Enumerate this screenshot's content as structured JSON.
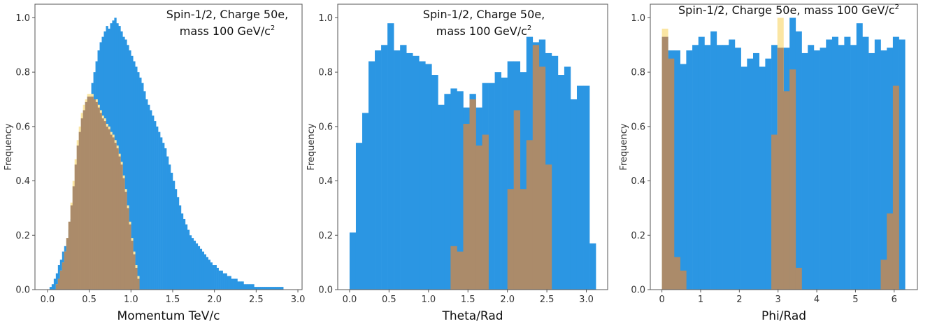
{
  "colors": {
    "blue": "#2b96e3",
    "brown": "#ab8b6a",
    "yellow": "#fbe6a3",
    "axis": "#555555"
  },
  "chart_data": [
    {
      "type": "bar",
      "xlabel": "Momentum  TeV/c",
      "ylabel": "Frequency",
      "xlim": [
        -0.15,
        3.05
      ],
      "ylim": [
        0,
        1.05
      ],
      "xticks": [
        "0.0",
        "0.5",
        "1.0",
        "1.5",
        "2.0",
        "2.5",
        "3.0"
      ],
      "yticks": [
        "0.0",
        "0.2",
        "0.4",
        "0.6",
        "0.8",
        "1.0"
      ],
      "annotation": [
        "Spin-1/2, Charge 50e,",
        "mass 100 GeV/c",
        "2"
      ],
      "series": [
        {
          "color": "blue",
          "x_start": 0.0,
          "bin_width": 0.025,
          "values": [
            0.0,
            0.01,
            0.02,
            0.04,
            0.06,
            0.09,
            0.11,
            0.14,
            0.16,
            0.18,
            0.22,
            0.26,
            0.3,
            0.35,
            0.4,
            0.45,
            0.5,
            0.55,
            0.6,
            0.66,
            0.71,
            0.76,
            0.8,
            0.84,
            0.88,
            0.91,
            0.93,
            0.95,
            0.97,
            0.96,
            0.98,
            0.99,
            1.0,
            0.98,
            0.97,
            0.95,
            0.93,
            0.92,
            0.9,
            0.88,
            0.86,
            0.84,
            0.82,
            0.8,
            0.78,
            0.76,
            0.73,
            0.7,
            0.68,
            0.66,
            0.64,
            0.62,
            0.6,
            0.58,
            0.56,
            0.54,
            0.52,
            0.49,
            0.46,
            0.43,
            0.4,
            0.37,
            0.34,
            0.31,
            0.28,
            0.26,
            0.24,
            0.22,
            0.2,
            0.19,
            0.18,
            0.17,
            0.16,
            0.15,
            0.14,
            0.13,
            0.12,
            0.11,
            0.1,
            0.09,
            0.09,
            0.08,
            0.07,
            0.07,
            0.06,
            0.06,
            0.05,
            0.05,
            0.04,
            0.04,
            0.04,
            0.03,
            0.03,
            0.03,
            0.02,
            0.02,
            0.02,
            0.02,
            0.02,
            0.01,
            0.01,
            0.01,
            0.01,
            0.01,
            0.01,
            0.01,
            0.01,
            0.01,
            0.01,
            0.01,
            0.01,
            0.01,
            0.01
          ]
        },
        {
          "color": "yellow",
          "x_start": 0.1,
          "bin_width": 0.025,
          "values": [
            0.02,
            0.04,
            0.07,
            0.1,
            0.14,
            0.19,
            0.25,
            0.32,
            0.4,
            0.48,
            0.55,
            0.6,
            0.65,
            0.68,
            0.7,
            0.72,
            0.72,
            0.72,
            0.7,
            0.7,
            0.68,
            0.66,
            0.64,
            0.63,
            0.61,
            0.6,
            0.58,
            0.57,
            0.55,
            0.53,
            0.5,
            0.47,
            0.42,
            0.37,
            0.31,
            0.25,
            0.19,
            0.14,
            0.09,
            0.05,
            0.0
          ]
        },
        {
          "color": "brown",
          "x_start": 0.1,
          "bin_width": 0.025,
          "values": [
            0.02,
            0.04,
            0.07,
            0.1,
            0.14,
            0.19,
            0.25,
            0.31,
            0.38,
            0.46,
            0.53,
            0.58,
            0.63,
            0.66,
            0.69,
            0.71,
            0.71,
            0.71,
            0.7,
            0.69,
            0.67,
            0.65,
            0.63,
            0.62,
            0.6,
            0.59,
            0.57,
            0.56,
            0.54,
            0.52,
            0.49,
            0.46,
            0.41,
            0.36,
            0.3,
            0.24,
            0.18,
            0.13,
            0.08,
            0.04,
            0.0
          ]
        }
      ]
    },
    {
      "type": "bar",
      "xlabel": "Theta/Rad",
      "ylabel": "Frequency",
      "xlim": [
        -0.15,
        3.27
      ],
      "ylim": [
        0,
        1.05
      ],
      "xticks": [
        "0.0",
        "0.5",
        "1.0",
        "1.5",
        "2.0",
        "2.5",
        "3.0"
      ],
      "yticks": [
        "0.0",
        "0.2",
        "0.4",
        "0.6",
        "0.8",
        "1.0"
      ],
      "annotation": [
        "Spin-1/2, Charge 50e,",
        "mass 100 GeV/c",
        "2"
      ],
      "series": [
        {
          "color": "blue",
          "x_start": 0.0,
          "bin_width": 0.08,
          "values": [
            0.21,
            0.54,
            0.65,
            0.84,
            0.88,
            0.9,
            0.98,
            0.88,
            0.9,
            0.87,
            0.86,
            0.84,
            0.83,
            0.79,
            0.68,
            0.72,
            0.74,
            0.73,
            0.67,
            0.72,
            0.67,
            0.76,
            0.76,
            0.8,
            0.78,
            0.84,
            0.84,
            0.8,
            0.93,
            0.91,
            0.92,
            0.87,
            0.86,
            0.79,
            0.82,
            0.7,
            0.75,
            0.75,
            0.17
          ]
        },
        {
          "color": "yellow",
          "x_start": 1.25,
          "bin_width": 0.08,
          "values": [
            0.0,
            0.0,
            0.0,
            0.0,
            0.0,
            0.0,
            0.0,
            0.0,
            0.0,
            0.0,
            0.0,
            0.0,
            0.0,
            0.0,
            0.0,
            0.0,
            0.0,
            0.0
          ]
        },
        {
          "color": "brown",
          "x_start": 1.28,
          "bin_width": 0.08,
          "values": [
            0.16,
            0.14,
            0.61,
            0.7,
            0.53,
            0.57,
            0.0,
            0.0,
            0.0,
            0.37,
            0.66,
            0.37,
            0.55,
            0.9,
            0.82,
            0.46
          ]
        }
      ]
    },
    {
      "type": "bar",
      "xlabel": "Phi/Rad",
      "ylabel": "Frequency",
      "xlim": [
        -0.3,
        6.6
      ],
      "ylim": [
        0,
        1.05
      ],
      "xticks": [
        "0",
        "1",
        "2",
        "3",
        "4",
        "5",
        "6"
      ],
      "yticks": [
        "0.0",
        "0.2",
        "0.4",
        "0.6",
        "0.8",
        "1.0"
      ],
      "annotation": [
        "Spin-1/2, Charge 50e, mass 100 GeV/c",
        "2"
      ],
      "series": [
        {
          "color": "blue",
          "x_start": 0.0,
          "bin_width": 0.157,
          "values": [
            0.93,
            0.88,
            0.88,
            0.83,
            0.88,
            0.9,
            0.93,
            0.9,
            0.95,
            0.9,
            0.9,
            0.92,
            0.89,
            0.82,
            0.85,
            0.87,
            0.82,
            0.85,
            0.9,
            0.87,
            0.89,
            1.0,
            0.95,
            0.87,
            0.9,
            0.88,
            0.89,
            0.92,
            0.93,
            0.9,
            0.93,
            0.9,
            0.98,
            0.93,
            0.87,
            0.92,
            0.88,
            0.89,
            0.93,
            0.92
          ]
        },
        {
          "color": "yellow",
          "x_start": 0.0,
          "bin_width": 0.157,
          "values": [
            0.96,
            0.0,
            0.0,
            0.0,
            0.0,
            0.0,
            0.0,
            0.0,
            0.0,
            0.0,
            0.0,
            0.0,
            0.0,
            0.0,
            0.0,
            0.0,
            0.0,
            0.0,
            0.0,
            1.0,
            0.0,
            0.0,
            0.0,
            0.0,
            0.0,
            0.0,
            0.0,
            0.0,
            0.0,
            0.0,
            0.0,
            0.0,
            0.0,
            0.0,
            0.0,
            0.0,
            0.0,
            0.0,
            0.0,
            0.0
          ]
        },
        {
          "color": "brown",
          "x_start": 0.0,
          "bin_width": 0.157,
          "values": [
            0.93,
            0.85,
            0.12,
            0.07,
            0.0,
            0.0,
            0.0,
            0.0,
            0.0,
            0.0,
            0.0,
            0.0,
            0.0,
            0.0,
            0.0,
            0.0,
            0.0,
            0.0,
            0.57,
            0.89,
            0.73,
            0.81,
            0.08,
            0.0,
            0.0,
            0.0,
            0.0,
            0.0,
            0.0,
            0.0,
            0.0,
            0.0,
            0.0,
            0.0,
            0.0,
            0.0,
            0.11,
            0.28,
            0.75,
            0.0
          ]
        }
      ]
    }
  ]
}
